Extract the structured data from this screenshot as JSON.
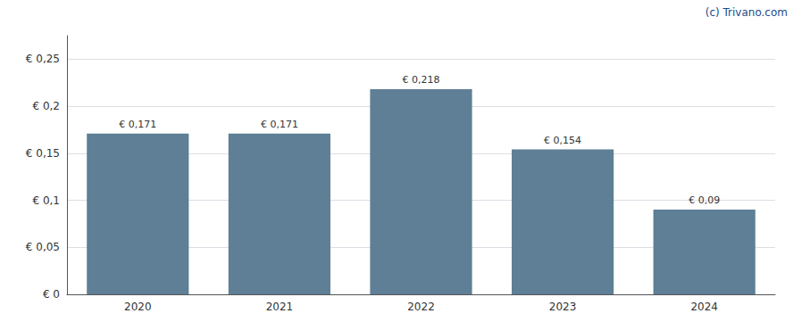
{
  "chart_data": {
    "type": "bar",
    "categories": [
      "2020",
      "2021",
      "2022",
      "2023",
      "2024"
    ],
    "values": [
      0.171,
      0.171,
      0.218,
      0.154,
      0.09
    ],
    "value_labels": [
      "€ 0,171",
      "€ 0,171",
      "€ 0,218",
      "€ 0,154",
      "€ 0,09"
    ],
    "color": "#5e7f95",
    "ylim": [
      0,
      0.275
    ],
    "yticks": [
      {
        "value": 0,
        "label": "€ 0"
      },
      {
        "value": 0.05,
        "label": "€ 0,05"
      },
      {
        "value": 0.1,
        "label": "€ 0,1"
      },
      {
        "value": 0.15,
        "label": "€ 0,15"
      },
      {
        "value": 0.2,
        "label": "€ 0,2"
      },
      {
        "value": 0.25,
        "label": "€ 0,25"
      }
    ],
    "grid": true,
    "data_labels": true,
    "annotations": [
      {
        "text": "(c) Trivano.com",
        "color": "#1a4a8a"
      }
    ]
  }
}
